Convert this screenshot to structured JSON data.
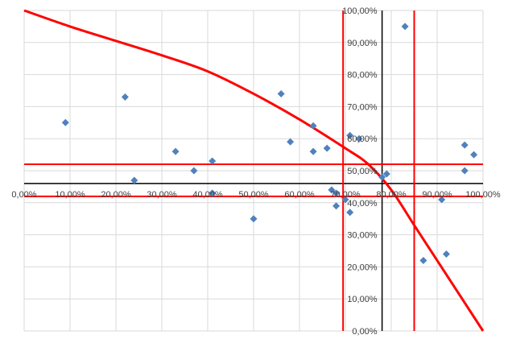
{
  "chart_data": {
    "type": "scatter",
    "x_axis": {
      "min": 0,
      "max": 1,
      "tick_labels": [
        "0,00%",
        "10,00%",
        "20,00%",
        "30,00%",
        "40,00%",
        "50,00%",
        "60,00%",
        "70,00%",
        "80,00%",
        "90,00%",
        "100,00%"
      ]
    },
    "y_axis": {
      "min": 0,
      "max": 1,
      "tick_labels": [
        "0,00%",
        "10,00%",
        "20,00%",
        "30,00%",
        "40,00%",
        "50,00%",
        "60,00%",
        "70,00%",
        "80,00%",
        "90,00%",
        "100,00%"
      ]
    },
    "grid": true,
    "axes_crossing": {
      "x_axis_at_y": 0.46,
      "y_axis_at_x": 0.78
    },
    "points": [
      {
        "x": 0.09,
        "y": 0.65
      },
      {
        "x": 0.22,
        "y": 0.73
      },
      {
        "x": 0.24,
        "y": 0.47
      },
      {
        "x": 0.33,
        "y": 0.56
      },
      {
        "x": 0.37,
        "y": 0.5
      },
      {
        "x": 0.41,
        "y": 0.53
      },
      {
        "x": 0.41,
        "y": 0.43
      },
      {
        "x": 0.5,
        "y": 0.35
      },
      {
        "x": 0.56,
        "y": 0.74
      },
      {
        "x": 0.58,
        "y": 0.59
      },
      {
        "x": 0.63,
        "y": 0.64
      },
      {
        "x": 0.63,
        "y": 0.56
      },
      {
        "x": 0.66,
        "y": 0.57
      },
      {
        "x": 0.67,
        "y": 0.44
      },
      {
        "x": 0.68,
        "y": 0.43
      },
      {
        "x": 0.68,
        "y": 0.39
      },
      {
        "x": 0.7,
        "y": 0.41
      },
      {
        "x": 0.71,
        "y": 0.37
      },
      {
        "x": 0.71,
        "y": 0.61
      },
      {
        "x": 0.73,
        "y": 0.6
      },
      {
        "x": 0.78,
        "y": 0.48
      },
      {
        "x": 0.79,
        "y": 0.49
      },
      {
        "x": 0.83,
        "y": 0.95
      },
      {
        "x": 0.87,
        "y": 0.22
      },
      {
        "x": 0.91,
        "y": 0.41
      },
      {
        "x": 0.92,
        "y": 0.24
      },
      {
        "x": 0.96,
        "y": 0.58
      },
      {
        "x": 0.96,
        "y": 0.5
      },
      {
        "x": 0.98,
        "y": 0.55
      }
    ],
    "curve": [
      {
        "x": 0.0,
        "y": 1.0
      },
      {
        "x": 0.1,
        "y": 0.95
      },
      {
        "x": 0.2,
        "y": 0.905
      },
      {
        "x": 0.3,
        "y": 0.86
      },
      {
        "x": 0.4,
        "y": 0.81
      },
      {
        "x": 0.5,
        "y": 0.74
      },
      {
        "x": 0.6,
        "y": 0.66
      },
      {
        "x": 0.7,
        "y": 0.57
      },
      {
        "x": 0.75,
        "y": 0.52
      },
      {
        "x": 0.8,
        "y": 0.44
      },
      {
        "x": 0.85,
        "y": 0.33
      },
      {
        "x": 0.9,
        "y": 0.22
      },
      {
        "x": 0.95,
        "y": 0.11
      },
      {
        "x": 1.0,
        "y": 0.0
      }
    ],
    "reference_lines": {
      "vertical_x": [
        0.695,
        0.85
      ],
      "horizontal_y": [
        0.52,
        0.42
      ]
    },
    "colors": {
      "points": "#4f81bd",
      "curve": "#ff0000",
      "reference": "#ff0000",
      "axes": "#000000",
      "grid": "#d9d9d9"
    }
  }
}
